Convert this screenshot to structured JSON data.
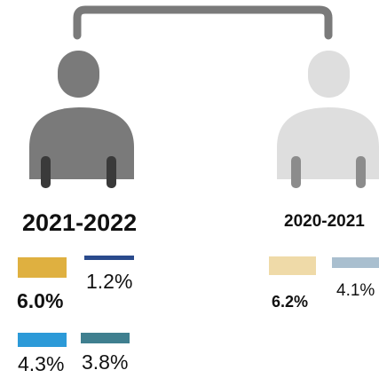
{
  "groups": [
    {
      "year": "2021-2022",
      "figure_color": "#7a7a7a",
      "figure_limb_color": "#3a3a3a",
      "emphasis": "current",
      "items": [
        {
          "value": "6.0%",
          "color": "#dfb040",
          "bold": true
        },
        {
          "value": "1.2%",
          "color": "#2a4a8c",
          "bold": false
        },
        {
          "value": "4.3%",
          "color": "#2c9ad8",
          "bold": false
        },
        {
          "value": "3.8%",
          "color": "#3f7f8f",
          "bold": false
        }
      ]
    },
    {
      "year": "2020-2021",
      "figure_color": "#dedede",
      "figure_limb_color": "#8c8c8c",
      "emphasis": "previous",
      "items": [
        {
          "value": "6.2%",
          "color": "#efdaa8",
          "bold": true
        },
        {
          "value": "4.1%",
          "color": "#a9bfcf",
          "bold": false
        }
      ]
    }
  ],
  "connector_color": "#7a7a7a"
}
